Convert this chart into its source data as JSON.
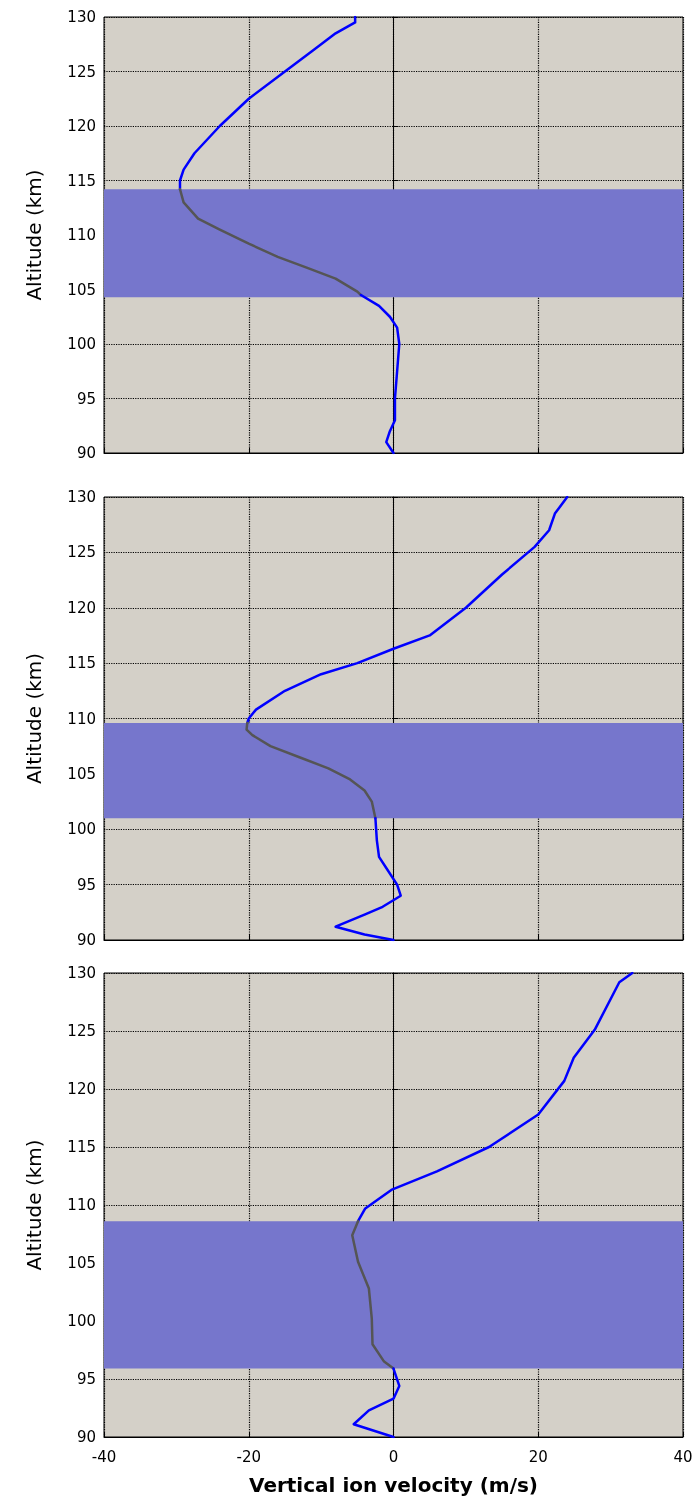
{
  "chart_data": [
    {
      "type": "line",
      "ylabel": "Altitude (km)",
      "xlim": [
        -40,
        40
      ],
      "xticks": [
        -40,
        -20,
        0,
        20,
        40
      ],
      "ylim": [
        90,
        130
      ],
      "yticks": [
        90,
        95,
        100,
        105,
        110,
        115,
        120,
        125,
        130
      ],
      "grid": true,
      "marker": "none",
      "line_style": "solid",
      "tick_labels": "y",
      "bands": [
        {
          "axis": "y",
          "from": 104.3,
          "to": 114.2,
          "color": "#7676cc"
        }
      ],
      "series": [
        {
          "color": "#0000ff",
          "x": [
            -5.3,
            -5.3,
            -8,
            -11,
            -15,
            -20,
            -24,
            -27.5,
            -29,
            -29.5,
            -29.5
          ],
          "values": [
            130,
            129.5,
            128.5,
            127,
            125,
            122.5,
            120,
            117.5,
            116,
            115,
            114.2
          ]
        },
        {
          "color": "#555555",
          "x": [
            -29.5,
            -29,
            -27,
            -24,
            -20,
            -16,
            -12,
            -8,
            -5,
            -4.5
          ],
          "values": [
            114.2,
            113,
            111.5,
            110.5,
            109.2,
            108,
            107,
            106,
            104.8,
            104.5
          ]
        },
        {
          "color": "#0000ff",
          "x": [
            -4.5,
            -2,
            -0.5,
            0.5,
            0.8,
            0.5,
            0.2,
            0.2,
            -0.5,
            -1,
            0
          ],
          "values": [
            104.5,
            103.5,
            102.5,
            101.5,
            100,
            97.5,
            95,
            93,
            92,
            91,
            90
          ]
        }
      ]
    },
    {
      "type": "line",
      "ylabel": "Altitude (km)",
      "xlim": [
        -40,
        40
      ],
      "xticks": [
        -40,
        -20,
        0,
        20,
        40
      ],
      "ylim": [
        90,
        130
      ],
      "yticks": [
        90,
        95,
        100,
        105,
        110,
        115,
        120,
        125,
        130
      ],
      "grid": true,
      "marker": "none",
      "line_style": "solid",
      "tick_labels": "y",
      "bands": [
        {
          "axis": "y",
          "from": 101,
          "to": 109.6,
          "color": "#7676cc"
        }
      ],
      "series": [
        {
          "color": "#0000ff",
          "x": [
            24,
            22.3,
            21.5,
            19.5,
            15,
            10,
            5,
            0,
            -5,
            -10,
            -15,
            -19,
            -20,
            -20.2
          ],
          "values": [
            130,
            128.5,
            127,
            125.5,
            123,
            120,
            117.5,
            116.3,
            115,
            114,
            112.5,
            110.8,
            110,
            109.6
          ]
        },
        {
          "color": "#555555",
          "x": [
            -20.2,
            -20.3,
            -19.5,
            -17,
            -13,
            -9,
            -6,
            -4,
            -3,
            -2.5
          ],
          "values": [
            109.6,
            109,
            108.5,
            107.5,
            106.5,
            105.5,
            104.5,
            103.5,
            102.5,
            101
          ]
        },
        {
          "color": "#0000ff",
          "x": [
            -2.5,
            -2.3,
            -2,
            -1,
            0.5,
            1,
            -1.5,
            -4,
            -8,
            -4,
            0
          ],
          "values": [
            101,
            99,
            97.5,
            96.5,
            95,
            94,
            93,
            92.3,
            91.2,
            90.5,
            90
          ]
        }
      ]
    },
    {
      "type": "line",
      "ylabel": "Altitude (km)",
      "xlabel": "Vertical ion velocity (m/s)",
      "xlim": [
        -40,
        40
      ],
      "xticks": [
        -40,
        -20,
        0,
        20,
        40
      ],
      "ylim": [
        90,
        130
      ],
      "yticks": [
        90,
        95,
        100,
        105,
        110,
        115,
        120,
        125,
        130
      ],
      "grid": true,
      "marker": "none",
      "line_style": "solid",
      "bands": [
        {
          "axis": "y",
          "from": 95.9,
          "to": 108.6,
          "color": "#7676cc"
        }
      ],
      "series": [
        {
          "color": "#0000ff",
          "x": [
            33,
            31.2,
            27.8,
            24.9,
            23.6,
            20,
            13.2,
            6,
            -0.3,
            -3.9,
            -4.9
          ],
          "values": [
            130,
            129.2,
            125.1,
            122.7,
            120.7,
            117.8,
            115,
            112.9,
            111.3,
            109.7,
            108.6
          ]
        },
        {
          "color": "#555555",
          "x": [
            -4.9,
            -5.7,
            -4.9,
            -3.4,
            -3,
            -2.9,
            -1.3,
            0
          ],
          "values": [
            108.6,
            107.4,
            105.1,
            102.8,
            100.2,
            98,
            96.5,
            95.9
          ]
        },
        {
          "color": "#0000ff",
          "x": [
            0,
            0.8,
            0,
            -3.4,
            -5.5,
            0
          ],
          "values": [
            95.9,
            94.4,
            93.3,
            92.3,
            91.1,
            90
          ]
        }
      ]
    }
  ]
}
